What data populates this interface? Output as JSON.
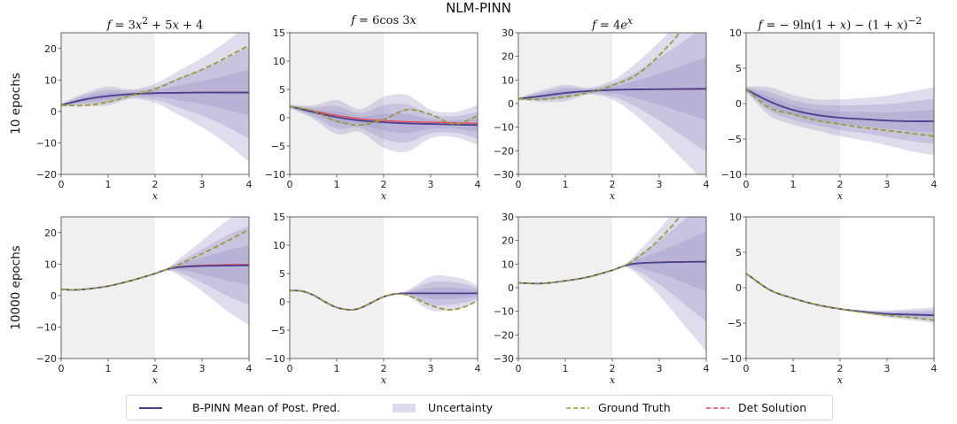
{
  "suptitle": "NLM-PINN",
  "row_labels": [
    "10 epochs",
    "10000 epochs"
  ],
  "legend": [
    {
      "label": "B-PINN Mean of Post. Pred.",
      "kind": "line",
      "color": "#4b3f8f"
    },
    {
      "label": "Uncertainty",
      "kind": "patch",
      "color": "#dcdaeb"
    },
    {
      "label": "Ground Truth",
      "kind": "dashed",
      "color": "#9a9a3a"
    },
    {
      "label": "Det Solution",
      "kind": "dashed",
      "color": "#e8474b"
    }
  ],
  "colors": {
    "mean": "#4b3f8f",
    "truth": "#9a9a3a",
    "det": "#e8474b",
    "band": "#8c86bd",
    "train_region": "#f0f0f0"
  },
  "chart_data": {
    "type": "line",
    "xlabel": "x",
    "train_region": [
      0,
      2
    ],
    "xlim": [
      0,
      4
    ],
    "xticks": [
      0,
      1,
      2,
      3,
      4
    ],
    "columns": [
      {
        "title_html": "<i>f</i> = 3<i>x</i><sup>2</sup> + 5<i>x</i> + 4",
        "ylim": [
          -20,
          25
        ],
        "yticks": [
          -20,
          -10,
          0,
          10,
          20
        ],
        "truth": "quad"
      },
      {
        "title_html": "<i>f</i> = 6cos 3<i>x</i>",
        "ylim": [
          -10,
          15
        ],
        "yticks": [
          -10,
          -5,
          0,
          5,
          10,
          15
        ],
        "truth": "cos"
      },
      {
        "title_html": "<i>f</i> = 4<i>e</i><sup><i>x</i></sup>",
        "ylim": [
          -30,
          30
        ],
        "yticks": [
          -30,
          -20,
          -10,
          0,
          10,
          20,
          30
        ],
        "truth": "exp"
      },
      {
        "title_html": "<i>f</i> = &minus; 9ln(1 + <i>x</i>) &minus; (1 + <i>x</i>)<sup>&minus;2</sup>",
        "ylim": [
          -10,
          10
        ],
        "yticks": [
          -10,
          -5,
          0,
          5,
          10
        ],
        "truth": "log"
      }
    ],
    "panels": [
      {
        "row": 0,
        "col": 0,
        "x": [
          0,
          0.5,
          1,
          1.5,
          2,
          2.5,
          3,
          3.5,
          4
        ],
        "mean": [
          2,
          3.8,
          4.9,
          5.5,
          5.8,
          5.9,
          6.0,
          6.0,
          6.0
        ],
        "truth": [
          2,
          1.9,
          3.0,
          5.1,
          7.1,
          10.3,
          13.3,
          17.0,
          21.0
        ],
        "det": [
          2,
          3.8,
          4.9,
          5.5,
          5.9,
          6.0,
          6.1,
          6.1,
          6.1
        ],
        "band_sd": [
          0.5,
          2.0,
          3.0,
          1.5,
          3.0,
          7.0,
          11.0,
          16.0,
          22.0
        ]
      },
      {
        "row": 0,
        "col": 1,
        "x": [
          0,
          0.5,
          1,
          1.5,
          2,
          2.5,
          3,
          3.5,
          4
        ],
        "mean": [
          2,
          1.0,
          0.1,
          -0.5,
          -0.8,
          -1.0,
          -1.1,
          -1.2,
          -1.3
        ],
        "truth": [
          2,
          1.2,
          -0.6,
          -1.3,
          -0.3,
          1.4,
          0.6,
          -1.1,
          0.3
        ],
        "det": [
          2,
          1.2,
          0.4,
          -0.2,
          -0.5,
          -0.7,
          -0.8,
          -0.9,
          -1.0
        ],
        "band_sd": [
          0.3,
          1.2,
          3.0,
          2.0,
          4.5,
          5.0,
          2.5,
          2.2,
          3.5
        ]
      },
      {
        "row": 0,
        "col": 2,
        "x": [
          0,
          0.5,
          1,
          1.5,
          2,
          2.5,
          3,
          3.5,
          4
        ],
        "mean": [
          2,
          3.2,
          4.5,
          5.3,
          5.8,
          6.0,
          6.1,
          6.2,
          6.3
        ],
        "truth": [
          2,
          1.8,
          2.9,
          4.6,
          7.7,
          12.0,
          20.5,
          32,
          50
        ],
        "det": [
          2,
          3.2,
          4.5,
          5.3,
          5.7,
          5.9,
          6.0,
          6.0,
          6.1
        ],
        "band_sd": [
          0.5,
          2.5,
          3.5,
          1.5,
          4.0,
          11.0,
          20.0,
          30.0,
          40.0
        ]
      },
      {
        "row": 0,
        "col": 3,
        "x": [
          0,
          0.5,
          1,
          1.5,
          2,
          2.5,
          3,
          3.5,
          4
        ],
        "mean": [
          2,
          0.3,
          -0.9,
          -1.6,
          -2.0,
          -2.2,
          -2.4,
          -2.5,
          -2.5
        ],
        "truth": [
          2,
          -0.6,
          -1.5,
          -2.4,
          -2.9,
          -3.4,
          -3.8,
          -4.2,
          -4.6
        ],
        "det": [
          2,
          0.3,
          -0.9,
          -1.6,
          -2.0,
          -2.2,
          -2.4,
          -2.5,
          -2.5
        ],
        "band_sd": [
          0.4,
          2.0,
          2.1,
          2.2,
          2.6,
          3.0,
          3.5,
          4.2,
          4.8
        ]
      },
      {
        "row": 1,
        "col": 0,
        "x": [
          0,
          0.25,
          0.5,
          1,
          1.5,
          2,
          2.25,
          2.5,
          3,
          3.5,
          4
        ],
        "mean": [
          2,
          1.8,
          2.0,
          3.0,
          4.8,
          7.0,
          8.3,
          9.0,
          9.4,
          9.5,
          9.6
        ],
        "truth": [
          2,
          1.8,
          2.0,
          3.0,
          4.8,
          7.0,
          8.3,
          9.8,
          13.3,
          17.0,
          21.0
        ],
        "det": [
          2,
          1.8,
          2.0,
          3.0,
          4.8,
          7.0,
          8.3,
          9.1,
          9.6,
          9.8,
          9.9
        ],
        "band_sd": [
          0.1,
          0.1,
          0.1,
          0.1,
          0.1,
          0.2,
          0.4,
          2.5,
          8.0,
          14.0,
          19.0
        ]
      },
      {
        "row": 1,
        "col": 1,
        "x": [
          0,
          0.25,
          0.5,
          0.75,
          1,
          1.3,
          1.5,
          1.75,
          2,
          2.25,
          2.5,
          3,
          3.4,
          3.75,
          4
        ],
        "mean": [
          2,
          1.9,
          1.2,
          0.0,
          -1.0,
          -1.4,
          -1.1,
          -0.1,
          0.9,
          1.4,
          1.5,
          1.5,
          1.5,
          1.5,
          1.5
        ],
        "truth": [
          2,
          1.9,
          1.2,
          0.0,
          -1.0,
          -1.4,
          -1.1,
          -0.1,
          0.9,
          1.4,
          1.2,
          -0.6,
          -1.4,
          -0.8,
          0.3
        ],
        "det": [
          2,
          1.9,
          1.2,
          0.0,
          -1.0,
          -1.4,
          -1.1,
          -0.1,
          0.9,
          1.4,
          1.5,
          1.5,
          1.5,
          1.5,
          1.5
        ],
        "band_sd": [
          0.05,
          0.05,
          0.05,
          0.05,
          0.05,
          0.05,
          0.05,
          0.05,
          0.05,
          0.1,
          0.5,
          3.0,
          3.0,
          2.4,
          1.3
        ]
      },
      {
        "row": 1,
        "col": 2,
        "x": [
          0,
          0.5,
          1,
          1.5,
          2,
          2.25,
          2.5,
          3,
          3.5,
          4
        ],
        "mean": [
          2,
          1.8,
          2.9,
          4.6,
          7.4,
          9.2,
          10.2,
          10.7,
          10.9,
          11.0
        ],
        "truth": [
          2,
          1.8,
          2.9,
          4.6,
          7.4,
          9.2,
          12.2,
          20.5,
          32,
          50
        ],
        "det": [
          2,
          1.8,
          2.9,
          4.6,
          7.4,
          9.2,
          10.3,
          10.8,
          11.0,
          11.1
        ],
        "band_sd": [
          0.1,
          0.1,
          0.1,
          0.1,
          0.1,
          0.3,
          4.0,
          14.0,
          26.0,
          38.0
        ]
      },
      {
        "row": 1,
        "col": 3,
        "x": [
          0,
          0.5,
          1,
          1.5,
          2,
          2.5,
          3,
          3.5,
          4
        ],
        "mean": [
          2,
          -0.3,
          -1.5,
          -2.4,
          -3.0,
          -3.4,
          -3.7,
          -3.8,
          -3.9
        ],
        "truth": [
          2,
          -0.3,
          -1.5,
          -2.4,
          -3.0,
          -3.5,
          -3.9,
          -4.2,
          -4.6
        ],
        "det": [
          2,
          -0.3,
          -1.5,
          -2.4,
          -3.0,
          -3.4,
          -3.7,
          -3.8,
          -3.9
        ],
        "band_sd": [
          0.05,
          0.05,
          0.05,
          0.05,
          0.1,
          0.2,
          0.5,
          0.8,
          1.1
        ]
      }
    ]
  }
}
